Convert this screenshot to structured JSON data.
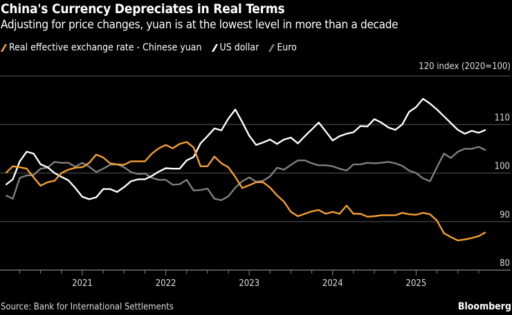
{
  "chart_data": {
    "type": "line",
    "title": "China's Currency Depreciates in Real Terms",
    "subtitle": "Adjusting for price changes, yuan is at the lowest level in more than a decade",
    "ylabel": "index (2020=100)",
    "xlabel": "",
    "ylim": [
      80,
      120
    ],
    "yticks": [
      80,
      90,
      100,
      110,
      120
    ],
    "xticks": [
      "2021",
      "2022",
      "2023",
      "2024",
      "2025"
    ],
    "grid": true,
    "legend_position": "top-left",
    "x_start": "2020-02",
    "x_end": "2025-11",
    "x_frequency": "monthly",
    "series": [
      {
        "name": "Real effective exchange rate - Chinese yuan",
        "color": "#f5a030",
        "values": [
          100,
          101.4,
          101.2,
          100.9,
          99.1,
          97.4,
          98.1,
          98.4,
          100,
          100.7,
          101.1,
          101.2,
          102.1,
          103.8,
          103.2,
          102,
          101.8,
          101.7,
          102.4,
          102.4,
          102.4,
          104,
          105.1,
          105.8,
          105.1,
          106,
          106.4,
          105.3,
          101.4,
          101.4,
          103.4,
          102,
          101.2,
          99.2,
          96.9,
          97.5,
          98.1,
          98.1,
          97,
          95.4,
          94.1,
          92,
          91.1,
          91.6,
          92.1,
          92.4,
          91.6,
          92,
          91.6,
          93.3,
          91.6,
          91.6,
          91,
          91.1,
          91.3,
          91.3,
          91.3,
          91.8,
          91.5,
          91.4,
          91.8,
          91.5,
          90.2,
          87.6,
          86.8,
          86.1,
          86.3,
          86.6,
          87,
          87.8
        ]
      },
      {
        "name": "US dollar",
        "color": "#ffffff",
        "values": [
          97.6,
          98.7,
          102.4,
          104.4,
          104,
          101.8,
          101.2,
          100,
          99.2,
          98.5,
          96.9,
          95.1,
          94.6,
          95,
          96.7,
          96.7,
          96.1,
          97.1,
          98.3,
          98.7,
          98.7,
          99.4,
          100.3,
          101,
          100.9,
          100.9,
          102.6,
          103.3,
          106.1,
          107.6,
          109.2,
          108.8,
          111.2,
          113.1,
          110.5,
          107.7,
          105.8,
          106.3,
          106.9,
          106,
          106.9,
          107.3,
          106.1,
          107.6,
          109,
          110.4,
          108.6,
          106.7,
          107.6,
          108.1,
          108.4,
          109.7,
          109.6,
          111.1,
          110.4,
          109.4,
          108.9,
          110,
          112.6,
          113.6,
          115.3,
          114.3,
          113.1,
          111.7,
          110.3,
          108.9,
          108.1,
          108.7,
          108.3,
          108.9
        ]
      },
      {
        "name": "Euro",
        "color": "#808080",
        "values": [
          95.4,
          94.7,
          99,
          99.5,
          99.6,
          100.9,
          101.1,
          102.3,
          102.1,
          102.1,
          101.3,
          102.1,
          101.3,
          100.2,
          100.9,
          101.7,
          101.8,
          101.2,
          100.2,
          99.8,
          99.9,
          99,
          98.6,
          98.6,
          97.6,
          97.7,
          98.6,
          96.4,
          96.5,
          96.8,
          94.7,
          94.4,
          95.2,
          97,
          98.3,
          99.1,
          98.2,
          98.4,
          99.3,
          101.1,
          100.7,
          101.7,
          102.6,
          102.6,
          102,
          101.6,
          101.6,
          101.4,
          100.9,
          100.5,
          101.8,
          101.8,
          102.1,
          102,
          102.1,
          102.3,
          102,
          101.5,
          100.5,
          100,
          98.9,
          98.3,
          101.2,
          104,
          103.1,
          104.4,
          105,
          105,
          105.4,
          104.7
        ]
      }
    ]
  },
  "footer": {
    "source": "Source: Bank for International Settlements",
    "brand": "Bloomberg"
  }
}
